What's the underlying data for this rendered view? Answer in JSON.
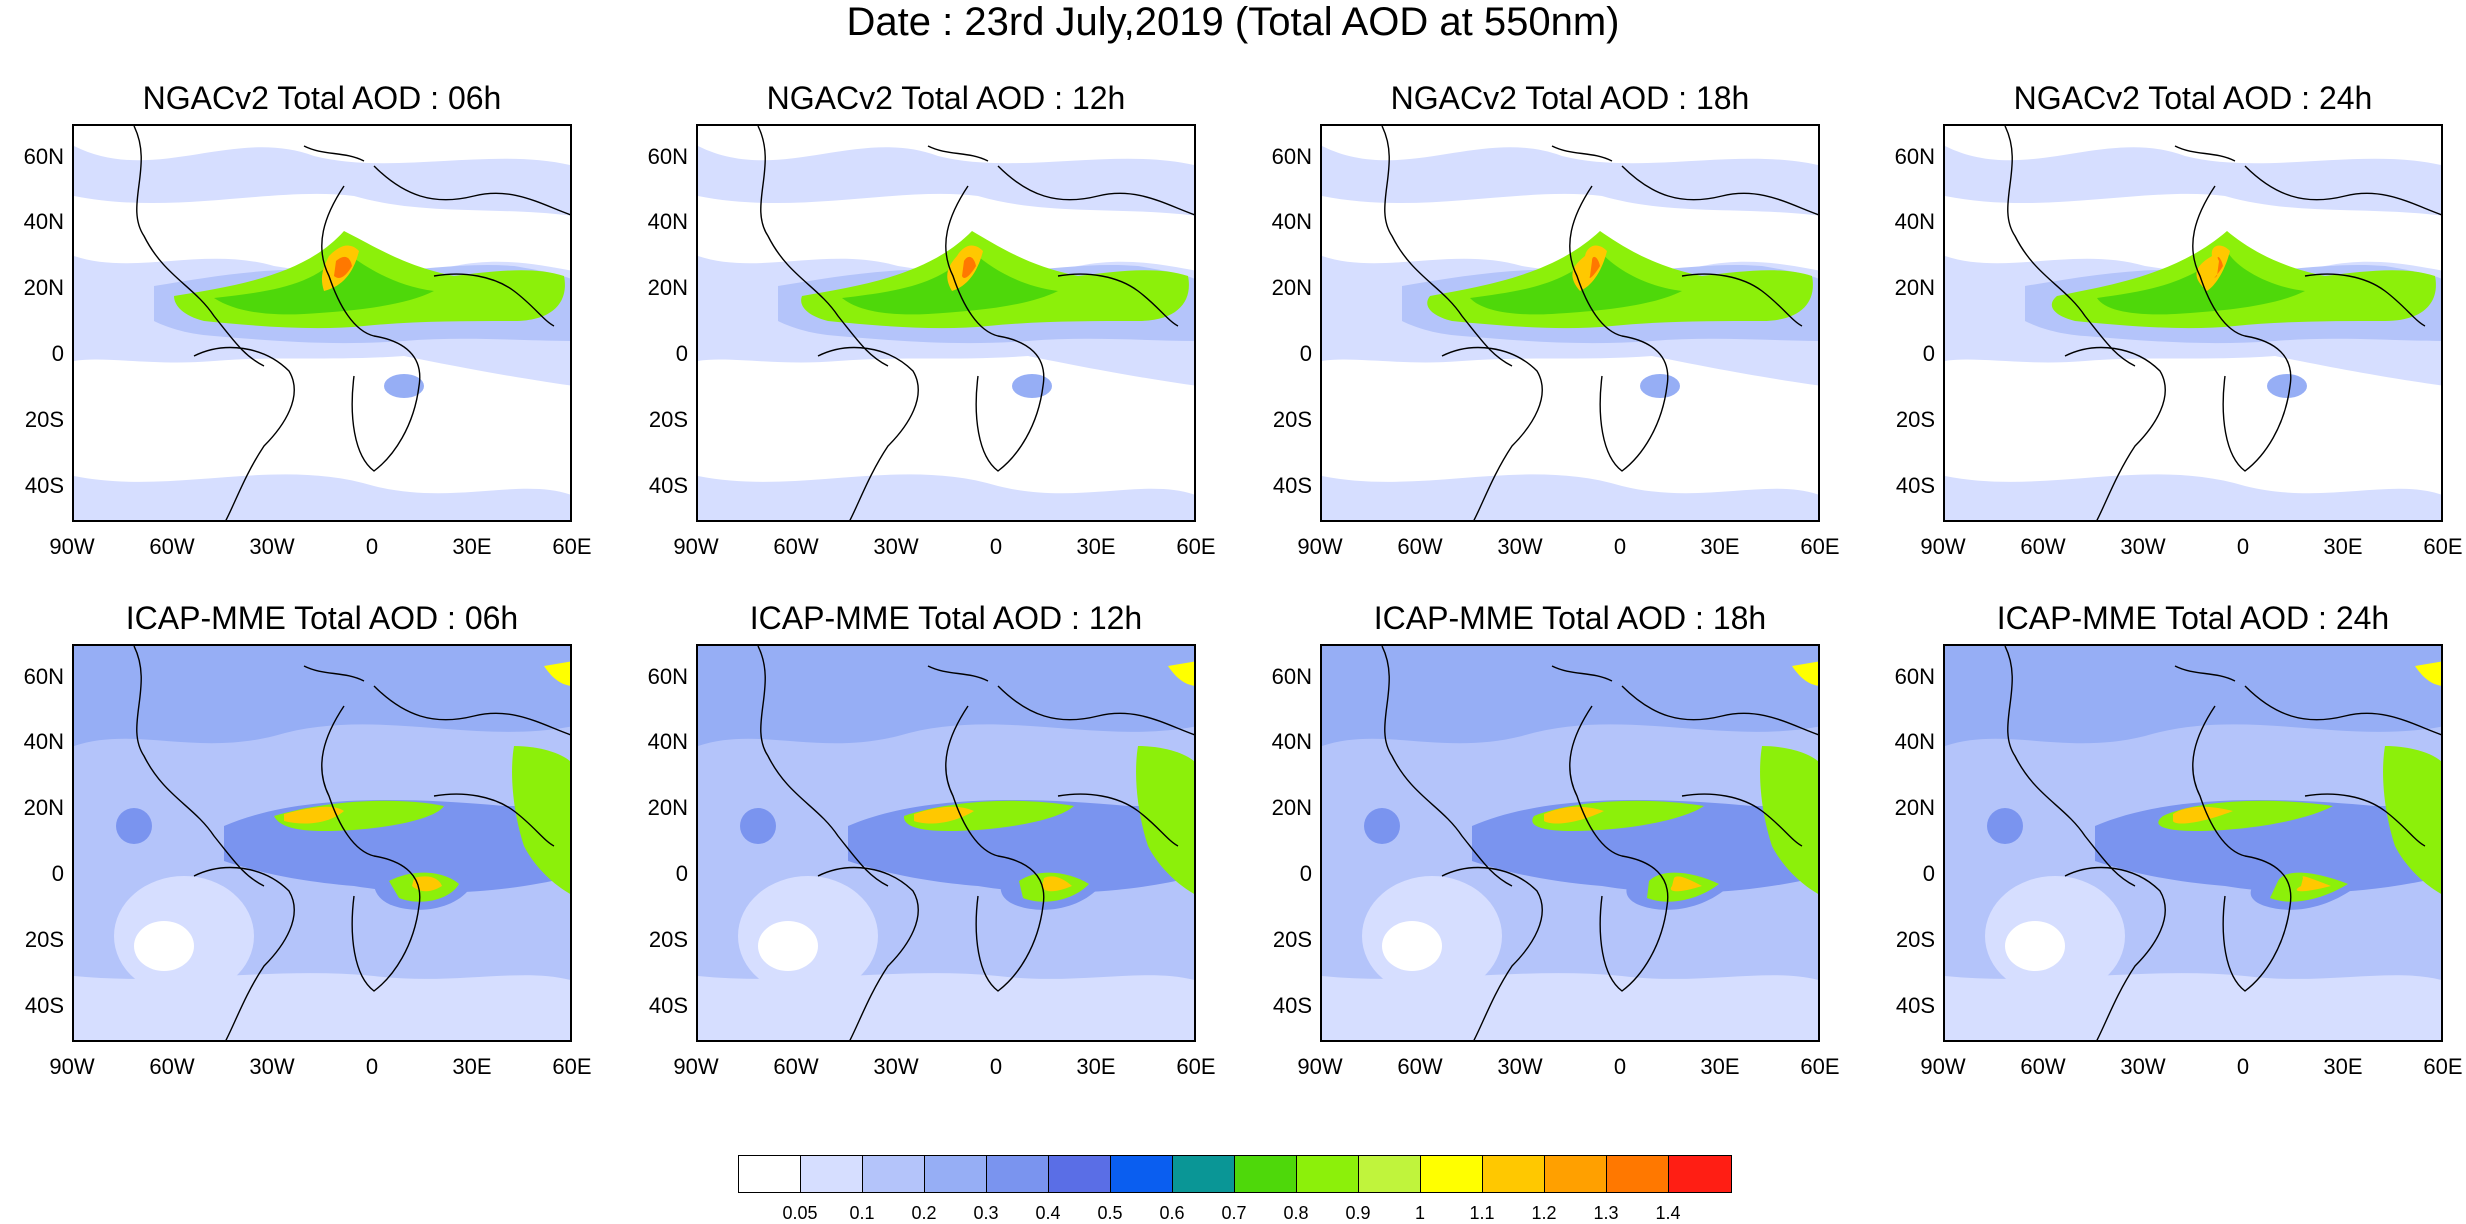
{
  "main_title": "Date : 23rd July,2019 (Total AOD at 550nm)",
  "lat_labels": [
    "60N",
    "40N",
    "20N",
    "0",
    "20S",
    "40S"
  ],
  "lon_labels": [
    "90W",
    "60W",
    "30W",
    "0",
    "30E",
    "60E"
  ],
  "panels": [
    {
      "title": "NGACv2 Total AOD : 06h",
      "model": "NGACv2",
      "hour": "06h"
    },
    {
      "title": "NGACv2 Total AOD : 12h",
      "model": "NGACv2",
      "hour": "12h"
    },
    {
      "title": "NGACv2 Total AOD : 18h",
      "model": "NGACv2",
      "hour": "18h"
    },
    {
      "title": "NGACv2 Total AOD : 24h",
      "model": "NGACv2",
      "hour": "24h"
    },
    {
      "title": "ICAP-MME Total AOD : 06h",
      "model": "ICAP-MME",
      "hour": "06h"
    },
    {
      "title": "ICAP-MME Total AOD : 12h",
      "model": "ICAP-MME",
      "hour": "12h"
    },
    {
      "title": "ICAP-MME Total AOD : 18h",
      "model": "ICAP-MME",
      "hour": "18h"
    },
    {
      "title": "ICAP-MME Total AOD : 24h",
      "model": "ICAP-MME",
      "hour": "24h"
    }
  ],
  "colorbar": {
    "labels": [
      "0.05",
      "0.1",
      "0.2",
      "0.3",
      "0.4",
      "0.5",
      "0.6",
      "0.7",
      "0.8",
      "0.9",
      "1",
      "1.1",
      "1.2",
      "1.3",
      "1.4"
    ],
    "colors": [
      "#ffffff",
      "#d6deff",
      "#b4c4fa",
      "#96aef5",
      "#7a94ef",
      "#5a6ee6",
      "#0a5ef0",
      "#0a9696",
      "#4ed80a",
      "#8cf00a",
      "#c0f43c",
      "#ffff00",
      "#ffc800",
      "#ffa000",
      "#ff7800",
      "#ff1e14"
    ]
  }
}
